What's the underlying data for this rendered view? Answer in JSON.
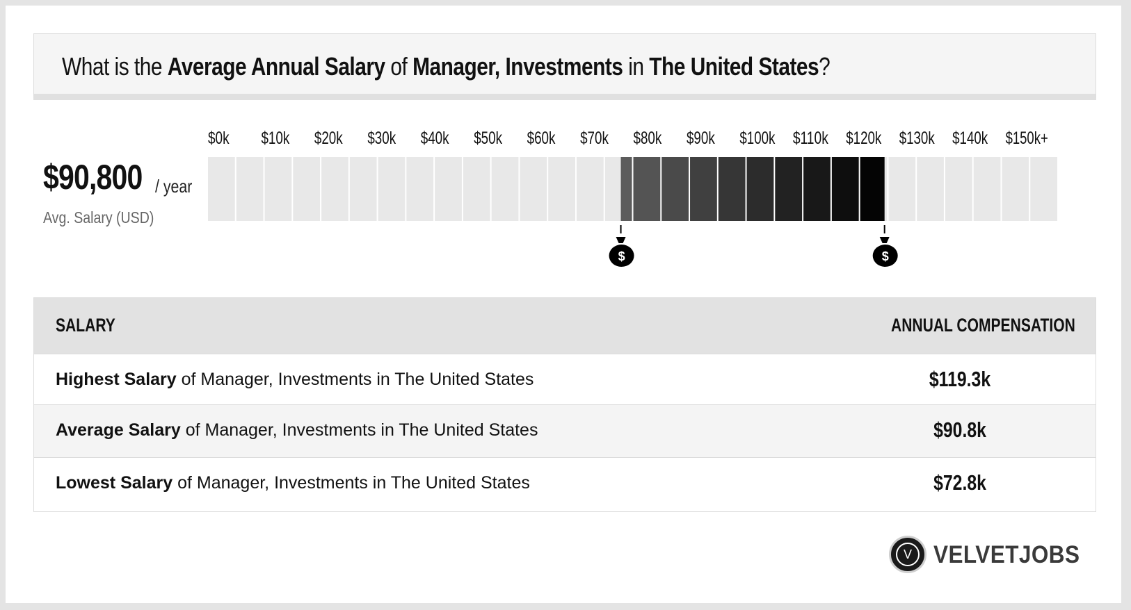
{
  "title": {
    "prefix": "What is the ",
    "metric": "Average Annual Salary",
    "of": " of ",
    "job": "Manager, Investments",
    "in": " in ",
    "location": "The United States",
    "suffix": "?"
  },
  "average": {
    "amount": "$90,800",
    "unit": "/ year",
    "caption": "Avg. Salary (USD)"
  },
  "chart_data": {
    "type": "bar",
    "categories": [
      "$0k",
      "$10k",
      "$20k",
      "$30k",
      "$40k",
      "$50k",
      "$60k",
      "$70k",
      "$80k",
      "$90k",
      "$100k",
      "$110k",
      "$120k",
      "$130k",
      "$140k",
      "$150k+"
    ],
    "range": {
      "low": 72800,
      "high": 119300
    },
    "axis_max": 150000,
    "markers": [
      {
        "name": "money-bag-low-icon",
        "value": 72800
      },
      {
        "name": "money-bag-high-icon",
        "value": 119300
      }
    ],
    "colors": {
      "empty": "#e8e8e8",
      "range_start": "#5e5e5e",
      "range_end": "#000000",
      "marker": "#000000"
    }
  },
  "table": {
    "headers": {
      "salary": "SALARY",
      "compensation": "ANNUAL COMPENSATION"
    },
    "rows": [
      {
        "label_bold": "Highest Salary",
        "label_rest": " of Manager, Investments in The United States",
        "value": "$119.3k"
      },
      {
        "label_bold": "Average Salary",
        "label_rest": " of Manager, Investments in The United States",
        "value": "$90.8k"
      },
      {
        "label_bold": "Lowest Salary",
        "label_rest": " of Manager, Investments in The United States",
        "value": "$72.8k"
      }
    ]
  },
  "logo": {
    "text": "VELVETJOBS",
    "initial": "V"
  }
}
